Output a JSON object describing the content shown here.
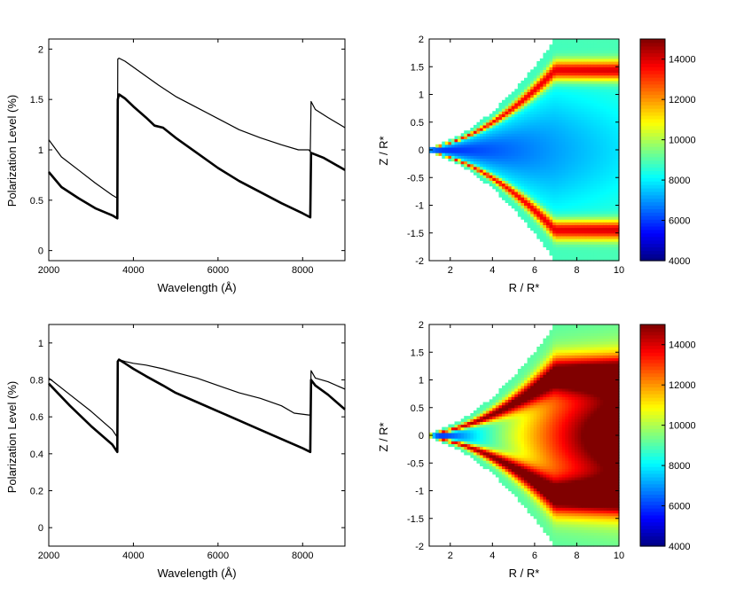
{
  "chart_data": [
    {
      "type": "line",
      "panel": "top-left",
      "xlabel": "Wavelength (Å)",
      "ylabel": "Polarization Level (%)",
      "xlim": [
        2000,
        9000
      ],
      "ylim": [
        -0.1,
        2.1
      ],
      "xticks": [
        2000,
        4000,
        6000,
        8000
      ],
      "xtick_labels": [
        "2000",
        "4000",
        "6000",
        "8000"
      ],
      "yticks": [
        0,
        0.5,
        1,
        1.5,
        2
      ],
      "ytick_labels": [
        "0",
        "0.5",
        "1",
        "1.5",
        "2"
      ],
      "series": [
        {
          "name": "thin",
          "x": [
            2000,
            2300,
            2700,
            3100,
            3500,
            3620,
            3630,
            3660,
            3800,
            4000,
            4300,
            4600,
            5000,
            5500,
            6000,
            6500,
            7000,
            7500,
            7900,
            8150,
            8180,
            8200,
            8300,
            8600,
            9000
          ],
          "y": [
            1.1,
            0.93,
            0.8,
            0.67,
            0.55,
            0.52,
            1.9,
            1.91,
            1.88,
            1.82,
            1.73,
            1.64,
            1.53,
            1.42,
            1.31,
            1.2,
            1.12,
            1.05,
            1.0,
            1.0,
            0.98,
            1.48,
            1.4,
            1.32,
            1.22
          ]
        },
        {
          "name": "thick",
          "x": [
            2000,
            2300,
            2700,
            3100,
            3500,
            3620,
            3630,
            3660,
            3800,
            4000,
            4300,
            4500,
            4700,
            5000,
            5500,
            6000,
            6500,
            7000,
            7500,
            8000,
            8180,
            8200,
            8500,
            9000
          ],
          "y": [
            0.78,
            0.63,
            0.52,
            0.42,
            0.35,
            0.32,
            1.5,
            1.55,
            1.51,
            1.43,
            1.32,
            1.24,
            1.22,
            1.12,
            0.97,
            0.82,
            0.69,
            0.58,
            0.47,
            0.37,
            0.33,
            0.97,
            0.92,
            0.8
          ]
        }
      ]
    },
    {
      "type": "heatmap",
      "panel": "top-right",
      "xlabel": "R / R*",
      "ylabel": "Z / R*",
      "xlim": [
        1,
        10
      ],
      "ylim": [
        -2,
        2
      ],
      "xticks": [
        2,
        4,
        6,
        8,
        10
      ],
      "xtick_labels": [
        "2",
        "4",
        "6",
        "8",
        "10"
      ],
      "yticks": [
        -2,
        -1.5,
        -1,
        -0.5,
        0,
        0.5,
        1,
        1.5,
        2
      ],
      "ytick_labels": [
        "-2",
        "-1.5",
        "-1",
        "-0.5",
        "0",
        "0.5",
        "1",
        "1.5",
        "2"
      ],
      "colorbar": {
        "min": 4000,
        "max": 15000,
        "ticks": [
          4000,
          6000,
          8000,
          10000,
          12000,
          14000
        ],
        "tick_labels": [
          "4000",
          "6000",
          "8000",
          "10000",
          "12000",
          "14000"
        ]
      },
      "model": {
        "background": 9000,
        "mid_T0": 5600,
        "mid_slope": 250,
        "mid_width": 0.6,
        "peak_T": 14300,
        "peak_pos_frac": 0.72,
        "peak_width_frac": 0.09,
        "rim_drop": 3000
      }
    },
    {
      "type": "line",
      "panel": "bottom-left",
      "xlabel": "Wavelength (Å)",
      "ylabel": "Polarization Level (%)",
      "xlim": [
        2000,
        9000
      ],
      "ylim": [
        -0.1,
        1.1
      ],
      "xticks": [
        2000,
        4000,
        6000,
        8000
      ],
      "xtick_labels": [
        "2000",
        "4000",
        "6000",
        "8000"
      ],
      "yticks": [
        0,
        0.2,
        0.4,
        0.6,
        0.8,
        1
      ],
      "ytick_labels": [
        "0",
        "0.2",
        "0.4",
        "0.6",
        "0.8",
        "1"
      ],
      "series": [
        {
          "name": "thin",
          "x": [
            2000,
            2500,
            3000,
            3500,
            3620,
            3630,
            3660,
            3800,
            4000,
            4300,
            4700,
            5000,
            5500,
            6000,
            6500,
            7000,
            7500,
            7800,
            8150,
            8180,
            8200,
            8300,
            8600,
            9000
          ],
          "y": [
            0.81,
            0.72,
            0.63,
            0.53,
            0.49,
            0.9,
            0.91,
            0.9,
            0.89,
            0.88,
            0.86,
            0.84,
            0.81,
            0.77,
            0.73,
            0.7,
            0.66,
            0.62,
            0.61,
            0.61,
            0.85,
            0.81,
            0.79,
            0.75
          ]
        },
        {
          "name": "thick",
          "x": [
            2000,
            2500,
            3000,
            3500,
            3620,
            3630,
            3660,
            3800,
            4000,
            4300,
            4700,
            5000,
            5500,
            6000,
            6500,
            7000,
            7500,
            8000,
            8180,
            8200,
            8300,
            8600,
            9000
          ],
          "y": [
            0.78,
            0.66,
            0.55,
            0.45,
            0.41,
            0.9,
            0.91,
            0.89,
            0.86,
            0.82,
            0.77,
            0.73,
            0.68,
            0.63,
            0.58,
            0.53,
            0.48,
            0.43,
            0.41,
            0.8,
            0.77,
            0.72,
            0.64
          ]
        }
      ]
    },
    {
      "type": "heatmap",
      "panel": "bottom-right",
      "xlabel": "R / R*",
      "ylabel": "Z / R*",
      "xlim": [
        1,
        10
      ],
      "ylim": [
        -2,
        2
      ],
      "xticks": [
        2,
        4,
        6,
        8,
        10
      ],
      "xtick_labels": [
        "2",
        "4",
        "6",
        "8",
        "10"
      ],
      "yticks": [
        -2,
        -1.5,
        -1,
        -0.5,
        0,
        0.5,
        1,
        1.5,
        2
      ],
      "ytick_labels": [
        "-2",
        "-1.5",
        "-1",
        "-0.5",
        "0",
        "0.5",
        "1",
        "1.5",
        "2"
      ],
      "colorbar": {
        "min": 4000,
        "max": 15000,
        "ticks": [
          4000,
          6000,
          8000,
          10000,
          12000,
          14000
        ],
        "tick_labels": [
          "4000",
          "6000",
          "8000",
          "10000",
          "12000",
          "14000"
        ]
      },
      "model": {
        "background": 9000,
        "mid_T0": 4800,
        "mid_slope": 1400,
        "mid_width": 0.55,
        "peak_T": 15000,
        "peak_pos_frac": 0.55,
        "peak_width_frac": 0.16,
        "rim_drop": 3000
      }
    }
  ]
}
